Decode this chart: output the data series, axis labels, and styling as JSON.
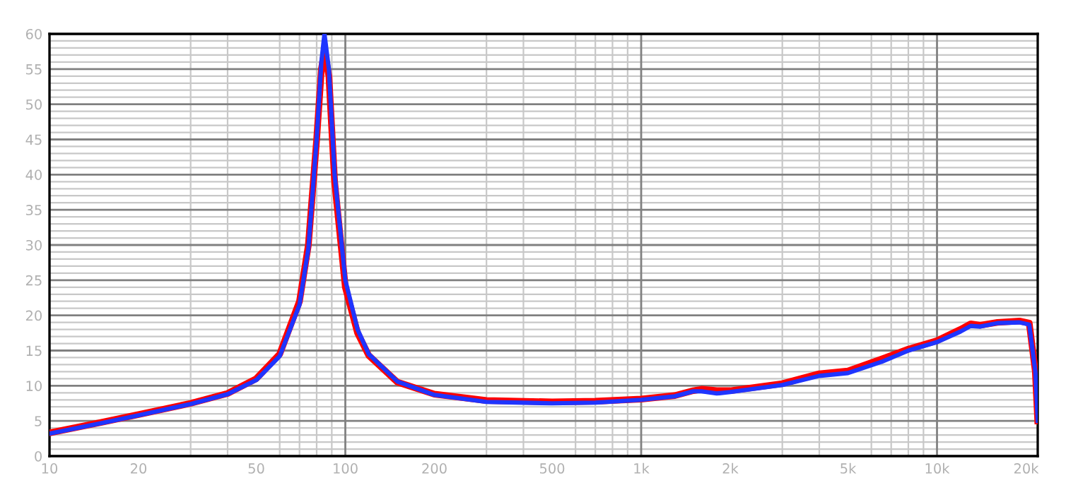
{
  "chart_data": {
    "type": "line",
    "log": "x",
    "xlim": [
      10,
      21900
    ],
    "ylim": [
      0,
      60
    ],
    "xticks": [
      10,
      20,
      50,
      100,
      200,
      500,
      {
        "value": 1000,
        "label": "1k"
      },
      {
        "value": 2000,
        "label": "2k"
      },
      {
        "value": 5000,
        "label": "5k"
      },
      {
        "value": 10000,
        "label": "10k"
      },
      {
        "value": 20000,
        "label": "20k"
      }
    ],
    "yticks": [
      0,
      5,
      10,
      15,
      20,
      25,
      30,
      35,
      40,
      45,
      50,
      55,
      60
    ],
    "grid": true,
    "line_style": "solid",
    "marker": "none",
    "series": [
      {
        "color": "#ff0000",
        "x": [
          10,
          15,
          20,
          30,
          40,
          50,
          60,
          70,
          75,
          80,
          83,
          85,
          88,
          92,
          100,
          110,
          120,
          150,
          200,
          300,
          500,
          700,
          1000,
          1300,
          1500,
          1600,
          1800,
          2000,
          3000,
          4000,
          5000,
          6500,
          8000,
          10000,
          12000,
          13000,
          14000,
          16000,
          19000,
          20500,
          21500,
          21900
        ],
        "values": [
          3.3,
          4.8,
          5.9,
          7.5,
          8.9,
          11,
          14.5,
          22,
          30,
          45,
          55,
          57.5,
          54,
          39,
          24,
          17.5,
          14.3,
          10.5,
          8.8,
          7.9,
          7.7,
          7.8,
          8.1,
          8.6,
          9.3,
          9.5,
          9.3,
          9.3,
          10.3,
          11.7,
          12.1,
          13.8,
          15.2,
          16.4,
          18,
          18.8,
          18.6,
          19,
          19.2,
          18.9,
          12,
          5
        ]
      },
      {
        "color": "#1f35ff",
        "x": [
          10,
          15,
          20,
          30,
          40,
          50,
          60,
          70,
          75,
          80,
          83,
          85,
          88,
          92,
          100,
          110,
          120,
          150,
          200,
          300,
          500,
          700,
          1000,
          1300,
          1500,
          1600,
          1800,
          2000,
          3000,
          4000,
          5000,
          6500,
          8000,
          10000,
          12000,
          13000,
          14000,
          16000,
          19000,
          20500,
          21500,
          21900
        ],
        "values": [
          3.2,
          4.7,
          5.8,
          7.4,
          8.8,
          10.8,
          14.2,
          21.5,
          29.5,
          45,
          56,
          60,
          55,
          40,
          25,
          18,
          14.5,
          10.6,
          8.7,
          7.7,
          7.5,
          7.6,
          8,
          8.5,
          9.2,
          9.2,
          8.9,
          9.1,
          10.1,
          11.4,
          11.8,
          13.4,
          15,
          16.2,
          17.7,
          18.5,
          18.4,
          18.9,
          19,
          18.7,
          12,
          5
        ]
      }
    ]
  }
}
